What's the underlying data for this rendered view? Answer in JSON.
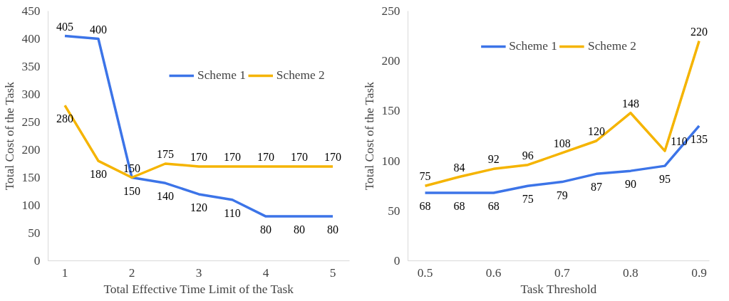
{
  "chart_data": [
    {
      "type": "line",
      "xlabel": "Total Effective Time Limit of the Task",
      "ylabel": "Total Cost of the Task",
      "x": [
        1,
        1.5,
        2,
        2.5,
        3,
        3.5,
        4,
        4.5,
        5
      ],
      "xlim": [
        0.75,
        5.25
      ],
      "xticks": [
        1,
        2,
        3,
        4,
        5
      ],
      "ylim": [
        0,
        450
      ],
      "yticks": [
        0,
        50,
        100,
        150,
        200,
        250,
        300,
        350,
        400,
        450
      ],
      "grid": false,
      "legend": "top right",
      "data_labels": true,
      "marker": "none",
      "line_style": "solid",
      "series": [
        {
          "name": "Scheme 1",
          "color": "#3c74e8",
          "values": [
            405,
            400,
            150,
            140,
            120,
            110,
            80,
            80,
            80
          ]
        },
        {
          "name": "Scheme 2",
          "color": "#f5b400",
          "values": [
            280,
            180,
            150,
            175,
            170,
            170,
            170,
            170,
            170
          ]
        }
      ]
    },
    {
      "type": "line",
      "xlabel": "Task Threshold",
      "ylabel": "Total Cost of the Task",
      "x": [
        0.5,
        0.55,
        0.6,
        0.65,
        0.7,
        0.75,
        0.8,
        0.85,
        0.9
      ],
      "xlim": [
        0.475,
        0.915
      ],
      "xticks": [
        0.5,
        0.6,
        0.7,
        0.8,
        0.9
      ],
      "ylim": [
        0,
        250
      ],
      "yticks": [
        0,
        50,
        100,
        150,
        200,
        250
      ],
      "grid": false,
      "legend": "top",
      "data_labels": true,
      "marker": "none",
      "line_style": "solid",
      "series": [
        {
          "name": "Scheme 1",
          "color": "#3c74e8",
          "values": [
            68,
            68,
            68,
            75,
            79,
            87,
            90,
            95,
            135
          ]
        },
        {
          "name": "Scheme 2",
          "color": "#f5b400",
          "values": [
            75,
            84,
            92,
            96,
            108,
            120,
            148,
            110,
            220
          ]
        }
      ]
    }
  ]
}
